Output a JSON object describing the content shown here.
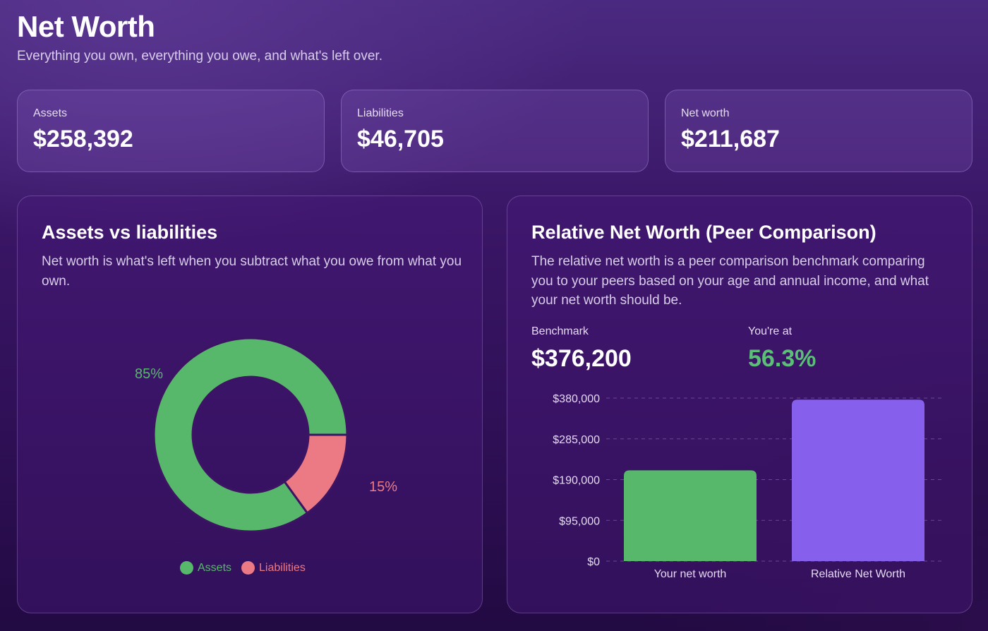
{
  "header": {
    "title": "Net Worth",
    "subtitle": "Everything you own, everything you owe, and what's left over."
  },
  "stats": {
    "assets": {
      "label": "Assets",
      "value": "$258,392"
    },
    "liabilities": {
      "label": "Liabilities",
      "value": "$46,705"
    },
    "net_worth": {
      "label": "Net worth",
      "value": "$211,687"
    }
  },
  "donut_panel": {
    "title": "Assets vs liabilities",
    "description": "Net worth is what's left when you subtract what you owe from what you own."
  },
  "peer_panel": {
    "title": "Relative Net Worth (Peer Comparison)",
    "description": "The relative net worth is a peer comparison benchmark comparing you to your peers based on your age and annual income, and what your net worth should be.",
    "benchmark_label": "Benchmark",
    "benchmark_value": "$376,200",
    "youre_at_label": "You're at",
    "youre_at_value": "56.3%"
  },
  "colors": {
    "assets": "#57b86c",
    "liabilities": "#ec7a85",
    "relative": "#8660ec",
    "positive_text": "#5bbf78"
  },
  "chart_data": [
    {
      "type": "pie",
      "variant": "donut",
      "categories": [
        "Assets",
        "Liabilities"
      ],
      "values": [
        85,
        15
      ],
      "data_labels": [
        "85%",
        "15%"
      ],
      "legend": [
        "Assets",
        "Liabilities"
      ],
      "legend_position": "bottom"
    },
    {
      "type": "bar",
      "categories": [
        "Your net worth",
        "Relative Net Worth"
      ],
      "values": [
        211687,
        376200
      ],
      "ylim": [
        0,
        380000
      ],
      "yticks": [
        0,
        95000,
        190000,
        285000,
        380000
      ],
      "ytick_labels": [
        "$0",
        "$95,000",
        "$190,000",
        "$285,000",
        "$380,000"
      ],
      "grid": true
    }
  ]
}
